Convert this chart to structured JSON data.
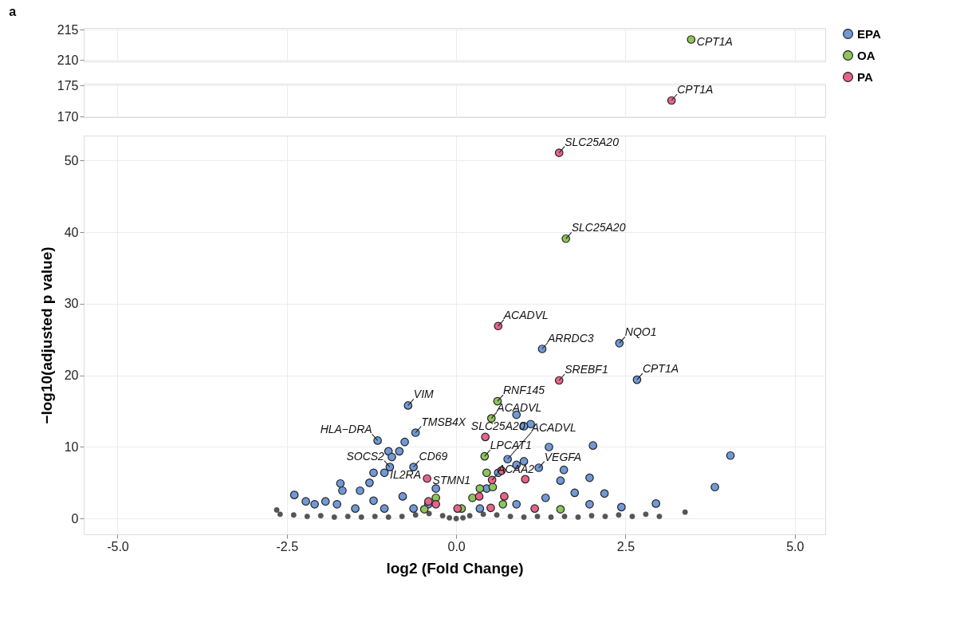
{
  "chart_data": [
    {
      "type": "scatter",
      "title": "a",
      "marker": "circle",
      "grid": true,
      "tick_labels": "y",
      "xlim": [
        -5.5,
        5.45
      ],
      "xticks": [
        {
          "value": -5,
          "label": null
        },
        {
          "value": -2.5,
          "label": null
        },
        {
          "value": 0,
          "label": null
        },
        {
          "value": 2.5,
          "label": null
        },
        {
          "value": 5,
          "label": null
        }
      ],
      "ylim": [
        209.8,
        215.3
      ],
      "yticks": [
        210,
        215
      ],
      "series": [
        {
          "color": "#8fc45a",
          "x": [
            3.47
          ],
          "values": [
            213.4
          ]
        }
      ],
      "annotations": [
        {
          "text": "CPT1A",
          "x": 3.47,
          "y": 213.4
        }
      ]
    },
    {
      "type": "scatter",
      "marker": "circle",
      "grid": true,
      "tick_labels": "y",
      "xlim": [
        -5.5,
        5.45
      ],
      "xticks": [
        {
          "value": -5,
          "label": null
        },
        {
          "value": -2.5,
          "label": null
        },
        {
          "value": 0,
          "label": null
        },
        {
          "value": 2.5,
          "label": null
        },
        {
          "value": 5,
          "label": null
        }
      ],
      "ylim": [
        169.9,
        175.3
      ],
      "yticks": [
        170,
        175
      ],
      "series": [
        {
          "color": "#e8638a",
          "x": [
            3.18
          ],
          "values": [
            172.6
          ]
        }
      ],
      "annotations": [
        {
          "text": "CPT1A",
          "x": 3.18,
          "y": 172.6
        }
      ]
    },
    {
      "type": "scatter",
      "marker": "circle",
      "grid": true,
      "legend": "right",
      "xlabel": "log2 (Fold Change)",
      "ylabel": "−log10(adjusted p value)",
      "xlim": [
        -5.5,
        5.45
      ],
      "xticks": [
        {
          "value": -5,
          "label": "-5.0"
        },
        {
          "value": -2.5,
          "label": "-2.5"
        },
        {
          "value": 0,
          "label": "0.0"
        },
        {
          "value": 2.5,
          "label": "2.5"
        },
        {
          "value": 5,
          "label": "5.0"
        }
      ],
      "ylim": [
        -2.2,
        53.5
      ],
      "yticks": [
        0,
        10,
        20,
        30,
        40,
        50
      ],
      "series": [
        {
          "color": "#555555",
          "x": [
            -2.65,
            -2.6,
            -2.4,
            -2.2,
            -2.0,
            -1.8,
            -1.6,
            -1.4,
            -1.2,
            -1.0,
            -0.8,
            -0.6,
            -0.4,
            -0.2,
            -0.1,
            0,
            0.1,
            0.2,
            0.4,
            0.6,
            0.8,
            1.0,
            1.2,
            1.4,
            1.6,
            1.8,
            2.0,
            2.2,
            2.4,
            2.6,
            2.8,
            3.0,
            3.38
          ],
          "values": [
            1.2,
            0.6,
            0.5,
            0.3,
            0.4,
            0.2,
            0.3,
            0.2,
            0.3,
            0.2,
            0.3,
            0.5,
            0.7,
            0.4,
            0.1,
            0,
            0.1,
            0.4,
            0.6,
            0.5,
            0.3,
            0.2,
            0.3,
            0.2,
            0.3,
            0.2,
            0.4,
            0.3,
            0.5,
            0.3,
            0.6,
            0.3,
            0.9
          ]
        },
        {
          "name": "EPA",
          "color": "#7099d6",
          "x": [
            2.41,
            1.27,
            2.67,
            -0.71,
            -0.6,
            -1.16,
            -0.63,
            -0.98,
            -1.06,
            0.76,
            1.1,
            1.22,
            4.05,
            3.82,
            2.95,
            -2.39,
            -2.22,
            -2.09,
            -1.93,
            -1.76,
            -1.71,
            -1.68,
            -1.42,
            -1.28,
            -1.22,
            -1.0,
            -0.84,
            -0.76,
            -0.95,
            -1.49,
            -1.06,
            -0.63,
            -0.41,
            0.89,
            1.0,
            2.02,
            1.97,
            2.19,
            1.59,
            1.75,
            2.44,
            0.89,
            1.37,
            1.54,
            1.97,
            0.89,
            0.45,
            0.35,
            1.32,
            0.62,
            1.0,
            -0.3,
            -0.79,
            -1.22
          ],
          "values": [
            24.5,
            23.7,
            19.4,
            15.8,
            12.0,
            10.9,
            7.2,
            7.2,
            6.4,
            8.3,
            13.2,
            7.1,
            8.8,
            4.4,
            2.1,
            3.3,
            2.4,
            2.0,
            2.4,
            2.0,
            4.9,
            3.9,
            3.9,
            5.0,
            6.4,
            9.4,
            9.4,
            10.7,
            8.6,
            1.4,
            1.4,
            1.4,
            2.0,
            14.5,
            12.9,
            10.2,
            5.7,
            3.5,
            6.8,
            3.6,
            1.6,
            7.5,
            10.0,
            5.3,
            2.0,
            2.0,
            4.2,
            1.4,
            2.9,
            6.4,
            8.0,
            4.2,
            3.1,
            2.5
          ]
        },
        {
          "name": "OA",
          "color": "#8fc45a",
          "x": [
            1.62,
            0.61,
            0.52,
            0.42,
            0.08,
            0.24,
            0.45,
            0.54,
            0.69,
            1.54,
            -0.47,
            -0.3,
            0.35
          ],
          "values": [
            39.1,
            16.4,
            14.0,
            8.7,
            1.4,
            2.9,
            6.4,
            4.4,
            2.0,
            1.3,
            1.3,
            2.9,
            4.2
          ]
        },
        {
          "name": "PA",
          "color": "#e8638a",
          "x": [
            1.52,
            0.62,
            1.52,
            0.43,
            -0.43,
            0.53,
            -0.3,
            -0.41,
            0.02,
            0.71,
            0.67,
            1.02,
            1.16,
            0.51,
            0.34
          ],
          "values": [
            51.1,
            26.9,
            19.3,
            11.4,
            5.6,
            5.4,
            2.0,
            2.4,
            1.4,
            3.1,
            6.7,
            5.5,
            1.4,
            1.5,
            3.1
          ]
        }
      ],
      "annotations": [
        {
          "text": "SLC25A20",
          "x": 1.52,
          "y": 51.1
        },
        {
          "text": "SLC25A20",
          "x": 1.62,
          "y": 39.1
        },
        {
          "text": "ACADVL",
          "x": 0.62,
          "y": 26.9
        },
        {
          "text": "ARRDC3",
          "x": 1.27,
          "y": 23.7
        },
        {
          "text": "NQO1",
          "x": 2.41,
          "y": 24.5
        },
        {
          "text": "CPT1A",
          "x": 2.67,
          "y": 19.4
        },
        {
          "text": "SREBF1",
          "x": 1.52,
          "y": 19.3
        },
        {
          "text": "RNF145",
          "x": 0.61,
          "y": 16.4
        },
        {
          "text": "VIM",
          "x": -0.71,
          "y": 15.8
        },
        {
          "text": "ACADVL",
          "x": 0.52,
          "y": 14.0
        },
        {
          "text": "TMSB4X",
          "x": -0.6,
          "y": 12.0
        },
        {
          "text": "HLA−DRA",
          "x": -1.16,
          "y": 10.9
        },
        {
          "text": "LPCAT1",
          "x": 0.42,
          "y": 8.7
        },
        {
          "text": "CD69",
          "x": -0.63,
          "y": 7.2
        },
        {
          "text": "SOCS2",
          "x": -0.98,
          "y": 7.2
        },
        {
          "text": "IL2RA",
          "x": -1.06,
          "y": 6.4
        },
        {
          "text": "STMN1",
          "x": -0.43,
          "y": 5.6
        },
        {
          "text": "ACAA2",
          "x": 0.53,
          "y": 5.4
        },
        {
          "text": "ACADVL",
          "x": 0.76,
          "y": 8.3
        },
        {
          "text": "SLC25A20",
          "x": 1.1,
          "y": 13.2
        },
        {
          "text": "VEGFA",
          "x": 1.22,
          "y": 7.1
        }
      ]
    }
  ]
}
